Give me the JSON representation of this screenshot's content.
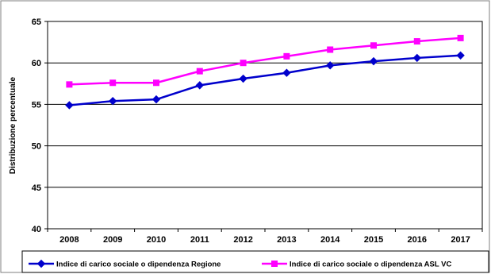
{
  "chart_data": {
    "type": "line",
    "title": "",
    "xlabel": "",
    "ylabel": "Distribuzione percentuale",
    "x": [
      "2008",
      "2009",
      "2010",
      "2011",
      "2012",
      "2013",
      "2014",
      "2015",
      "2016",
      "2017"
    ],
    "yticks": [
      "40",
      "45",
      "50",
      "55",
      "60",
      "65"
    ],
    "ylim": [
      40,
      65
    ],
    "grid": true,
    "legend_position": "bottom",
    "series": [
      {
        "name": "Indice di carico sociale o dipendenza Regione",
        "color": "#0000CC",
        "marker": "diamond",
        "values": [
          54.9,
          55.4,
          55.6,
          57.3,
          58.1,
          58.8,
          59.7,
          60.2,
          60.6,
          60.9
        ]
      },
      {
        "name": "Indice di carico sociale o dipendenza ASL VC",
        "color": "#FF00FF",
        "marker": "square",
        "values": [
          57.4,
          57.6,
          57.6,
          59.0,
          60.0,
          60.8,
          61.6,
          62.1,
          62.6,
          63.0
        ]
      }
    ]
  }
}
